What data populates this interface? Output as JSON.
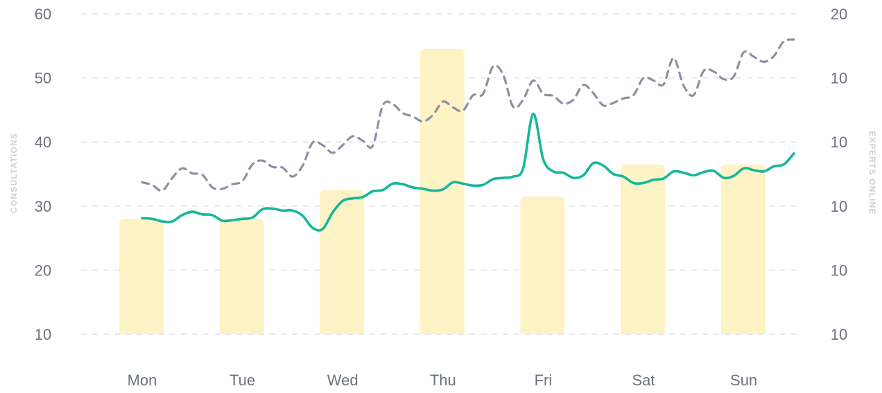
{
  "chart_data": {
    "type": "bar+line",
    "categories": [
      "Mon",
      "Tue",
      "Wed",
      "Thu",
      "Fri",
      "Sat",
      "Sun"
    ],
    "ylabel_left": "CONSULTATIONS",
    "ylabel_right": "EXPERTS ONLINE",
    "y_left_ticks": [
      "10",
      "20",
      "30",
      "40",
      "50",
      "60"
    ],
    "y_right_ticks": [
      "10",
      "10",
      "10",
      "10",
      "10",
      "20"
    ],
    "ylim_left": [
      10,
      60
    ],
    "grid": true,
    "colors": {
      "bars": "#fdf3c4",
      "solid_line": "#16b79a",
      "dashed_line": "#8b90a3"
    },
    "bars": {
      "values": [
        28,
        28,
        32.5,
        54.5,
        31.5,
        36.5,
        36.5
      ]
    },
    "solid_series": {
      "x": [
        0,
        0.1,
        0.2,
        0.3,
        0.4,
        0.5,
        0.6,
        0.7,
        0.8,
        0.9,
        1.0,
        1.1,
        1.2,
        1.3,
        1.4,
        1.5,
        1.6,
        1.7,
        1.8,
        1.9,
        2.0,
        2.1,
        2.2,
        2.3,
        2.4,
        2.5,
        2.6,
        2.7,
        2.8,
        2.9,
        3.0,
        3.1,
        3.2,
        3.3,
        3.4,
        3.5,
        3.6,
        3.7,
        3.8,
        3.9,
        4.0,
        4.1,
        4.2,
        4.3,
        4.4,
        4.5,
        4.6,
        4.7,
        4.8,
        4.9,
        5.0,
        5.1,
        5.2,
        5.3,
        5.4,
        5.5,
        5.6,
        5.7,
        5.8,
        5.9,
        6.0,
        6.1,
        6.2,
        6.3,
        6.4,
        6.5
      ],
      "y": [
        28.1,
        28.0,
        27.6,
        27.6,
        28.6,
        29.1,
        28.7,
        28.6,
        27.7,
        27.8,
        28.0,
        28.2,
        29.5,
        29.6,
        29.3,
        29.3,
        28.5,
        26.6,
        26.4,
        29.0,
        30.8,
        31.2,
        31.4,
        32.3,
        32.5,
        33.5,
        33.4,
        32.9,
        32.7,
        32.4,
        32.6,
        33.7,
        33.5,
        33.2,
        33.3,
        34.2,
        34.4,
        34.6,
        35.9,
        44.4,
        37.3,
        35.4,
        35.2,
        34.4,
        34.8,
        36.7,
        36.3,
        35.0,
        34.6,
        33.6,
        33.6,
        34.1,
        34.3,
        35.4,
        35.2,
        34.8,
        35.3,
        35.5,
        34.4,
        34.7,
        35.9,
        35.6,
        35.4,
        36.2,
        36.5,
        38.2
      ]
    },
    "dashed_series": {
      "x": [
        0,
        0.1,
        0.2,
        0.3,
        0.4,
        0.5,
        0.6,
        0.7,
        0.8,
        0.9,
        1.0,
        1.1,
        1.2,
        1.3,
        1.4,
        1.5,
        1.6,
        1.7,
        1.8,
        1.9,
        2.0,
        2.1,
        2.2,
        2.3,
        2.4,
        2.5,
        2.6,
        2.7,
        2.8,
        2.9,
        3.0,
        3.1,
        3.2,
        3.3,
        3.4,
        3.5,
        3.6,
        3.7,
        3.8,
        3.9,
        4.0,
        4.1,
        4.2,
        4.3,
        4.4,
        4.5,
        4.6,
        4.7,
        4.8,
        4.9,
        5.0,
        5.1,
        5.2,
        5.3,
        5.4,
        5.5,
        5.6,
        5.7,
        5.8,
        5.9,
        6.0,
        6.1,
        6.2,
        6.3,
        6.4,
        6.5
      ],
      "y": [
        33.7,
        33.3,
        32.4,
        34.4,
        35.9,
        35.1,
        34.9,
        32.9,
        32.7,
        33.4,
        33.9,
        36.5,
        37.1,
        36.1,
        36.0,
        34.6,
        36.3,
        39.9,
        39.5,
        38.3,
        39.5,
        40.9,
        40.2,
        39.4,
        45.7,
        45.9,
        44.5,
        44.0,
        43.2,
        44.2,
        46.3,
        45.4,
        44.9,
        47.3,
        47.5,
        51.8,
        50.5,
        45.5,
        46.6,
        49.6,
        47.5,
        47.2,
        46.0,
        46.6,
        48.9,
        47.6,
        45.7,
        46.1,
        46.8,
        47.3,
        50.0,
        49.6,
        49.0,
        53.1,
        48.8,
        47.3,
        51.1,
        51.0,
        49.8,
        50.2,
        54.0,
        53.3,
        52.5,
        53.4,
        55.7,
        56.0
      ]
    }
  }
}
